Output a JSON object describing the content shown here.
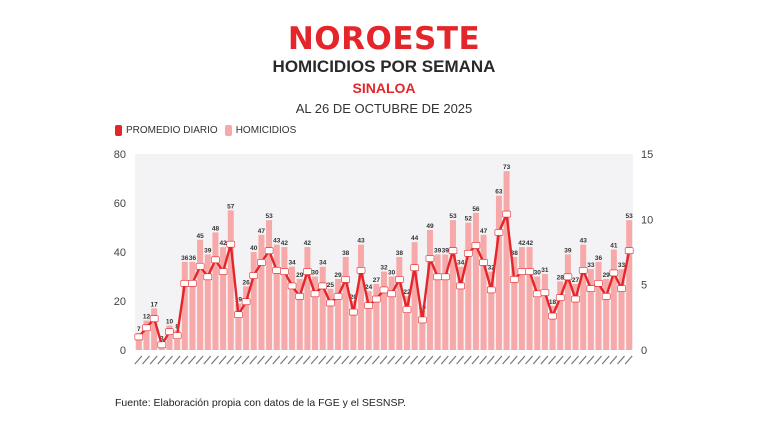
{
  "header": {
    "logo": "NOROESTE",
    "title": "HOMICIDIOS POR SEMANA",
    "subtitle": "SINALOA",
    "date": "AL 26 DE OCTUBRE DE 2025"
  },
  "legend": {
    "line_label": "PROMEDIO DIARIO",
    "bar_label": "HOMICIDIOS"
  },
  "colors": {
    "brand": "#e4262a",
    "line": "#e4262a",
    "bar": "#f7a8a8",
    "plot_bg": "#f3f3f5"
  },
  "footer": "Fuente: Elaboración propia con datos de la FGE y el SESNSP.",
  "chart_data": {
    "type": "bar",
    "title": "HOMICIDIOS POR SEMANA",
    "subtitle": "SINALOA — AL 26 DE OCTUBRE DE 2025",
    "xlabel": "",
    "ylabel": "Homicidios",
    "y2label": "Promedio diario",
    "ylim": [
      0,
      80
    ],
    "y2lim": [
      0,
      15
    ],
    "yticks": [
      0,
      20,
      40,
      60,
      80
    ],
    "y2ticks": [
      0,
      5,
      10,
      15
    ],
    "grid": false,
    "legend_position": "top-left",
    "categories_note": "Weekly date labels (rotated, illegible at source resolution), ending week of 26-oct-25",
    "series": [
      {
        "name": "HOMICIDIOS",
        "type": "bar",
        "axis": "left",
        "values": [
          7,
          12,
          17,
          3,
          10,
          8,
          36,
          36,
          45,
          39,
          48,
          42,
          57,
          19,
          26,
          40,
          47,
          53,
          43,
          42,
          34,
          29,
          42,
          30,
          34,
          25,
          29,
          38,
          20,
          43,
          24,
          27,
          32,
          30,
          38,
          22,
          44,
          16,
          49,
          39,
          39,
          53,
          34,
          52,
          56,
          47,
          32,
          63,
          73,
          38,
          42,
          42,
          30,
          31,
          18,
          28,
          39,
          27,
          43,
          33,
          36,
          29,
          41,
          33,
          53
        ]
      },
      {
        "name": "PROMEDIO DIARIO",
        "type": "line",
        "axis": "right",
        "values": [
          1.0,
          1.7,
          2.4,
          0.4,
          1.4,
          1.1,
          5.1,
          5.1,
          6.4,
          5.6,
          6.9,
          6.0,
          8.1,
          2.7,
          3.7,
          5.7,
          6.7,
          7.6,
          6.1,
          6.0,
          4.9,
          4.1,
          6.0,
          4.3,
          4.9,
          3.6,
          4.1,
          5.4,
          2.9,
          6.1,
          3.4,
          3.9,
          4.6,
          4.3,
          5.4,
          3.1,
          6.3,
          2.3,
          7.0,
          5.6,
          5.6,
          7.6,
          4.9,
          7.4,
          8.0,
          6.7,
          4.6,
          9.0,
          10.4,
          5.4,
          6.0,
          6.0,
          4.3,
          4.4,
          2.6,
          4.0,
          5.6,
          3.9,
          6.1,
          4.7,
          5.1,
          4.1,
          5.9,
          4.7,
          7.6
        ]
      }
    ]
  }
}
